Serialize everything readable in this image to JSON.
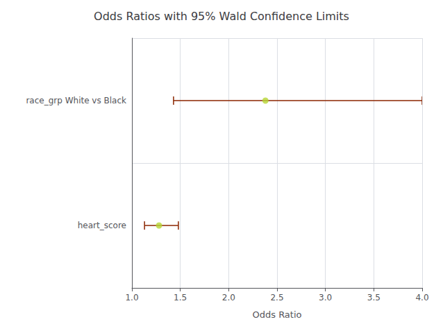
{
  "chart_data": {
    "type": "scatter",
    "title": "Odds Ratios with 95% Wald Confidence Limits",
    "xlabel": "Odds Ratio",
    "categories": [
      "race_grp White vs Black",
      "heart_score"
    ],
    "values": [
      2.38,
      1.28
    ],
    "ci_low": [
      1.43,
      1.13
    ],
    "ci_high": [
      4.0,
      1.48
    ],
    "xlim": [
      1.0,
      4.0
    ],
    "xticks": [
      {
        "value": 1.0,
        "label": "1.0"
      },
      1.5,
      {
        "value": 2.0,
        "label": "2.0"
      },
      2.5,
      {
        "value": 3.0,
        "label": "3.0"
      },
      3.5,
      {
        "value": 4.0,
        "label": "4.0"
      }
    ],
    "grid": true
  }
}
